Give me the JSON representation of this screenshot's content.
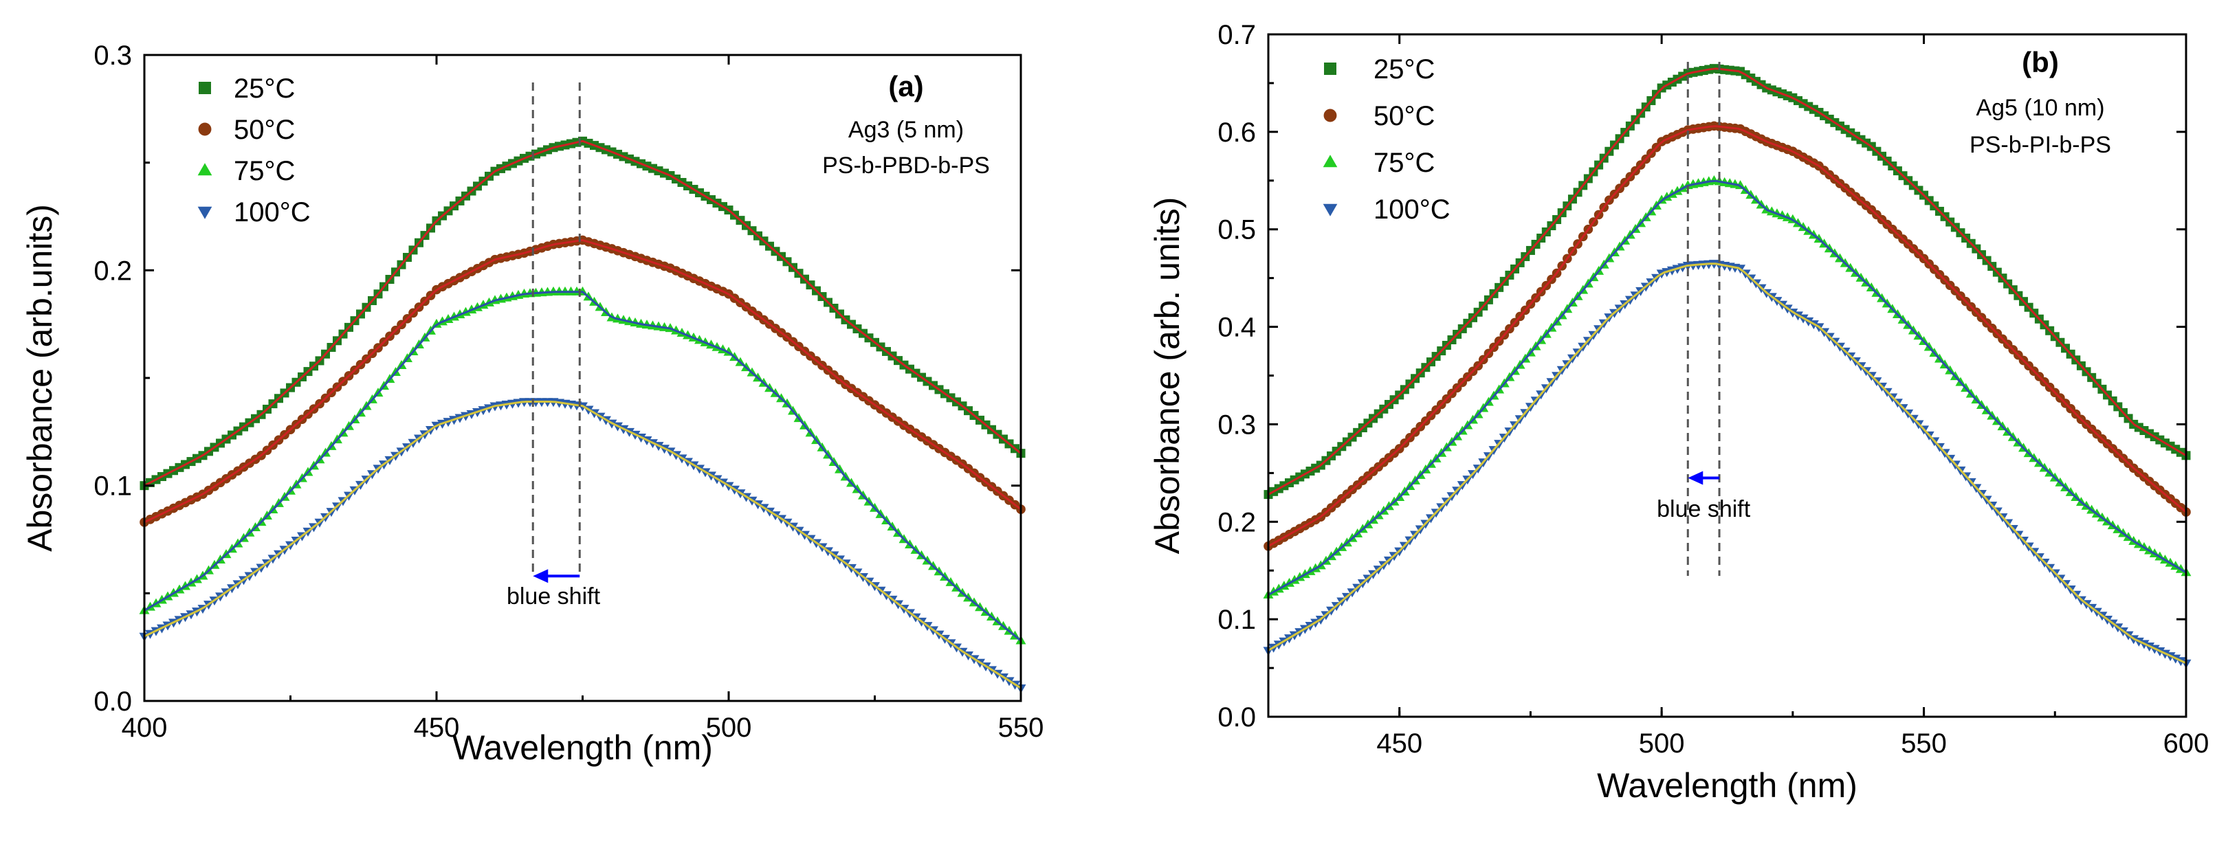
{
  "chart_data": [
    {
      "panel_label": "(a)",
      "type": "scatter",
      "sample_label": "Ag3 (5 nm)",
      "polymer_label": "PS-b-PBD-b-PS",
      "xlabel": "Wavelength (nm)",
      "ylabel": "Absorbance (arb.units)",
      "xlim": [
        400,
        550
      ],
      "ylim": [
        0,
        0.3
      ],
      "xticks": [
        400,
        450,
        500,
        550
      ],
      "xtick_labels": [
        "400",
        "450",
        "500",
        "550"
      ],
      "yticks": [
        0,
        0.1,
        0.2,
        0.3
      ],
      "ytick_labels": [
        "0.0",
        "0.1",
        "0.2",
        "0.3"
      ],
      "dashed_lines_x": [
        466.5,
        474.5
      ],
      "arrow": {
        "from_x": 474.5,
        "to_x": 466.5,
        "y": 0.058
      },
      "annotation": "blue shift",
      "annotation_pos": {
        "x": 470,
        "y": 0.045
      },
      "series": [
        {
          "name": "25°C",
          "marker": "square",
          "color": "#1e7b1e",
          "fit_color": "#cc2222",
          "x": [
            400,
            410,
            420,
            430,
            440,
            450,
            460,
            465,
            470,
            475,
            480,
            490,
            500,
            510,
            520,
            530,
            540,
            550
          ],
          "y": [
            0.1,
            0.114,
            0.133,
            0.158,
            0.189,
            0.223,
            0.246,
            0.252,
            0.257,
            0.26,
            0.255,
            0.244,
            0.228,
            0.204,
            0.177,
            0.156,
            0.137,
            0.115
          ]
        },
        {
          "name": "50°C",
          "marker": "circle",
          "color": "#8b3a10",
          "fit_color": "#cc2222",
          "x": [
            400,
            410,
            420,
            430,
            440,
            450,
            460,
            465,
            470,
            475,
            480,
            490,
            500,
            510,
            520,
            530,
            540,
            550
          ],
          "y": [
            0.083,
            0.096,
            0.114,
            0.138,
            0.164,
            0.191,
            0.205,
            0.208,
            0.212,
            0.214,
            0.21,
            0.201,
            0.189,
            0.169,
            0.147,
            0.128,
            0.11,
            0.089
          ]
        },
        {
          "name": "75°C",
          "marker": "triangle-up",
          "color": "#22cc22",
          "fit_color": "#2a4fa8",
          "x": [
            400,
            410,
            420,
            430,
            440,
            450,
            460,
            465,
            470,
            475,
            480,
            485,
            490,
            500,
            510,
            520,
            530,
            540,
            550
          ],
          "y": [
            0.042,
            0.058,
            0.083,
            0.112,
            0.143,
            0.175,
            0.186,
            0.189,
            0.19,
            0.19,
            0.178,
            0.175,
            0.173,
            0.162,
            0.138,
            0.104,
            0.075,
            0.05,
            0.028
          ]
        },
        {
          "name": "100°C",
          "marker": "triangle-down",
          "color": "#2a5caa",
          "fit_color": "#d4c43c",
          "x": [
            400,
            410,
            420,
            430,
            440,
            450,
            460,
            465,
            470,
            475,
            480,
            490,
            500,
            510,
            520,
            530,
            540,
            550
          ],
          "y": [
            0.03,
            0.043,
            0.062,
            0.083,
            0.108,
            0.128,
            0.137,
            0.139,
            0.139,
            0.137,
            0.129,
            0.116,
            0.1,
            0.083,
            0.064,
            0.043,
            0.023,
            0.006
          ]
        }
      ]
    },
    {
      "panel_label": "(b)",
      "type": "scatter",
      "sample_label": "Ag5 (10 nm)",
      "polymer_label": "PS-b-PI-b-PS",
      "xlabel": "Wavelength (nm)",
      "ylabel": "Absorbance (arb. units)",
      "xlim": [
        425,
        600
      ],
      "ylim": [
        0,
        0.7
      ],
      "xticks": [
        450,
        500,
        550,
        600
      ],
      "xtick_labels": [
        "450",
        "500",
        "550",
        "600"
      ],
      "yticks": [
        0,
        0.1,
        0.2,
        0.3,
        0.4,
        0.5,
        0.6,
        0.7
      ],
      "ytick_labels": [
        "0.0",
        "0.1",
        "0.2",
        "0.3",
        "0.4",
        "0.5",
        "0.6",
        "0.7"
      ],
      "dashed_lines_x": [
        505,
        511
      ],
      "arrow": {
        "from_x": 511,
        "to_x": 505,
        "y": 0.245
      },
      "annotation": "blue shift",
      "annotation_pos": {
        "x": 508,
        "y": 0.205
      },
      "series": [
        {
          "name": "25°C",
          "marker": "square",
          "color": "#1e7b1e",
          "fit_color": "#cc2222",
          "x": [
            425,
            435,
            450,
            465,
            480,
            490,
            500,
            505,
            510,
            515,
            520,
            525,
            530,
            540,
            550,
            560,
            570,
            580,
            590,
            600
          ],
          "y": [
            0.228,
            0.258,
            0.33,
            0.415,
            0.51,
            0.58,
            0.645,
            0.66,
            0.665,
            0.662,
            0.645,
            0.635,
            0.62,
            0.585,
            0.535,
            0.48,
            0.42,
            0.36,
            0.3,
            0.268
          ]
        },
        {
          "name": "50°C",
          "marker": "circle",
          "color": "#8b3a10",
          "fit_color": "#cc2222",
          "x": [
            425,
            435,
            450,
            465,
            480,
            490,
            500,
            505,
            510,
            515,
            520,
            525,
            530,
            540,
            550,
            560,
            570,
            580,
            590,
            600
          ],
          "y": [
            0.175,
            0.205,
            0.275,
            0.36,
            0.455,
            0.53,
            0.59,
            0.602,
            0.606,
            0.603,
            0.59,
            0.58,
            0.565,
            0.52,
            0.47,
            0.415,
            0.36,
            0.305,
            0.255,
            0.21
          ]
        },
        {
          "name": "75°C",
          "marker": "triangle-up",
          "color": "#22cc22",
          "fit_color": "#2a4fa8",
          "x": [
            425,
            435,
            450,
            465,
            480,
            490,
            500,
            505,
            510,
            515,
            520,
            525,
            530,
            540,
            550,
            560,
            570,
            580,
            590,
            600
          ],
          "y": [
            0.125,
            0.155,
            0.225,
            0.31,
            0.405,
            0.47,
            0.53,
            0.545,
            0.55,
            0.545,
            0.52,
            0.51,
            0.49,
            0.44,
            0.385,
            0.325,
            0.27,
            0.22,
            0.18,
            0.148
          ]
        },
        {
          "name": "100°C",
          "marker": "triangle-down",
          "color": "#2a5caa",
          "fit_color": "#d4c43c",
          "x": [
            425,
            435,
            450,
            465,
            480,
            490,
            500,
            505,
            510,
            515,
            520,
            525,
            530,
            540,
            550,
            560,
            570,
            580,
            590,
            600
          ],
          "y": [
            0.068,
            0.1,
            0.17,
            0.255,
            0.35,
            0.41,
            0.455,
            0.463,
            0.465,
            0.46,
            0.435,
            0.415,
            0.4,
            0.35,
            0.295,
            0.235,
            0.175,
            0.12,
            0.08,
            0.055
          ]
        }
      ]
    }
  ]
}
